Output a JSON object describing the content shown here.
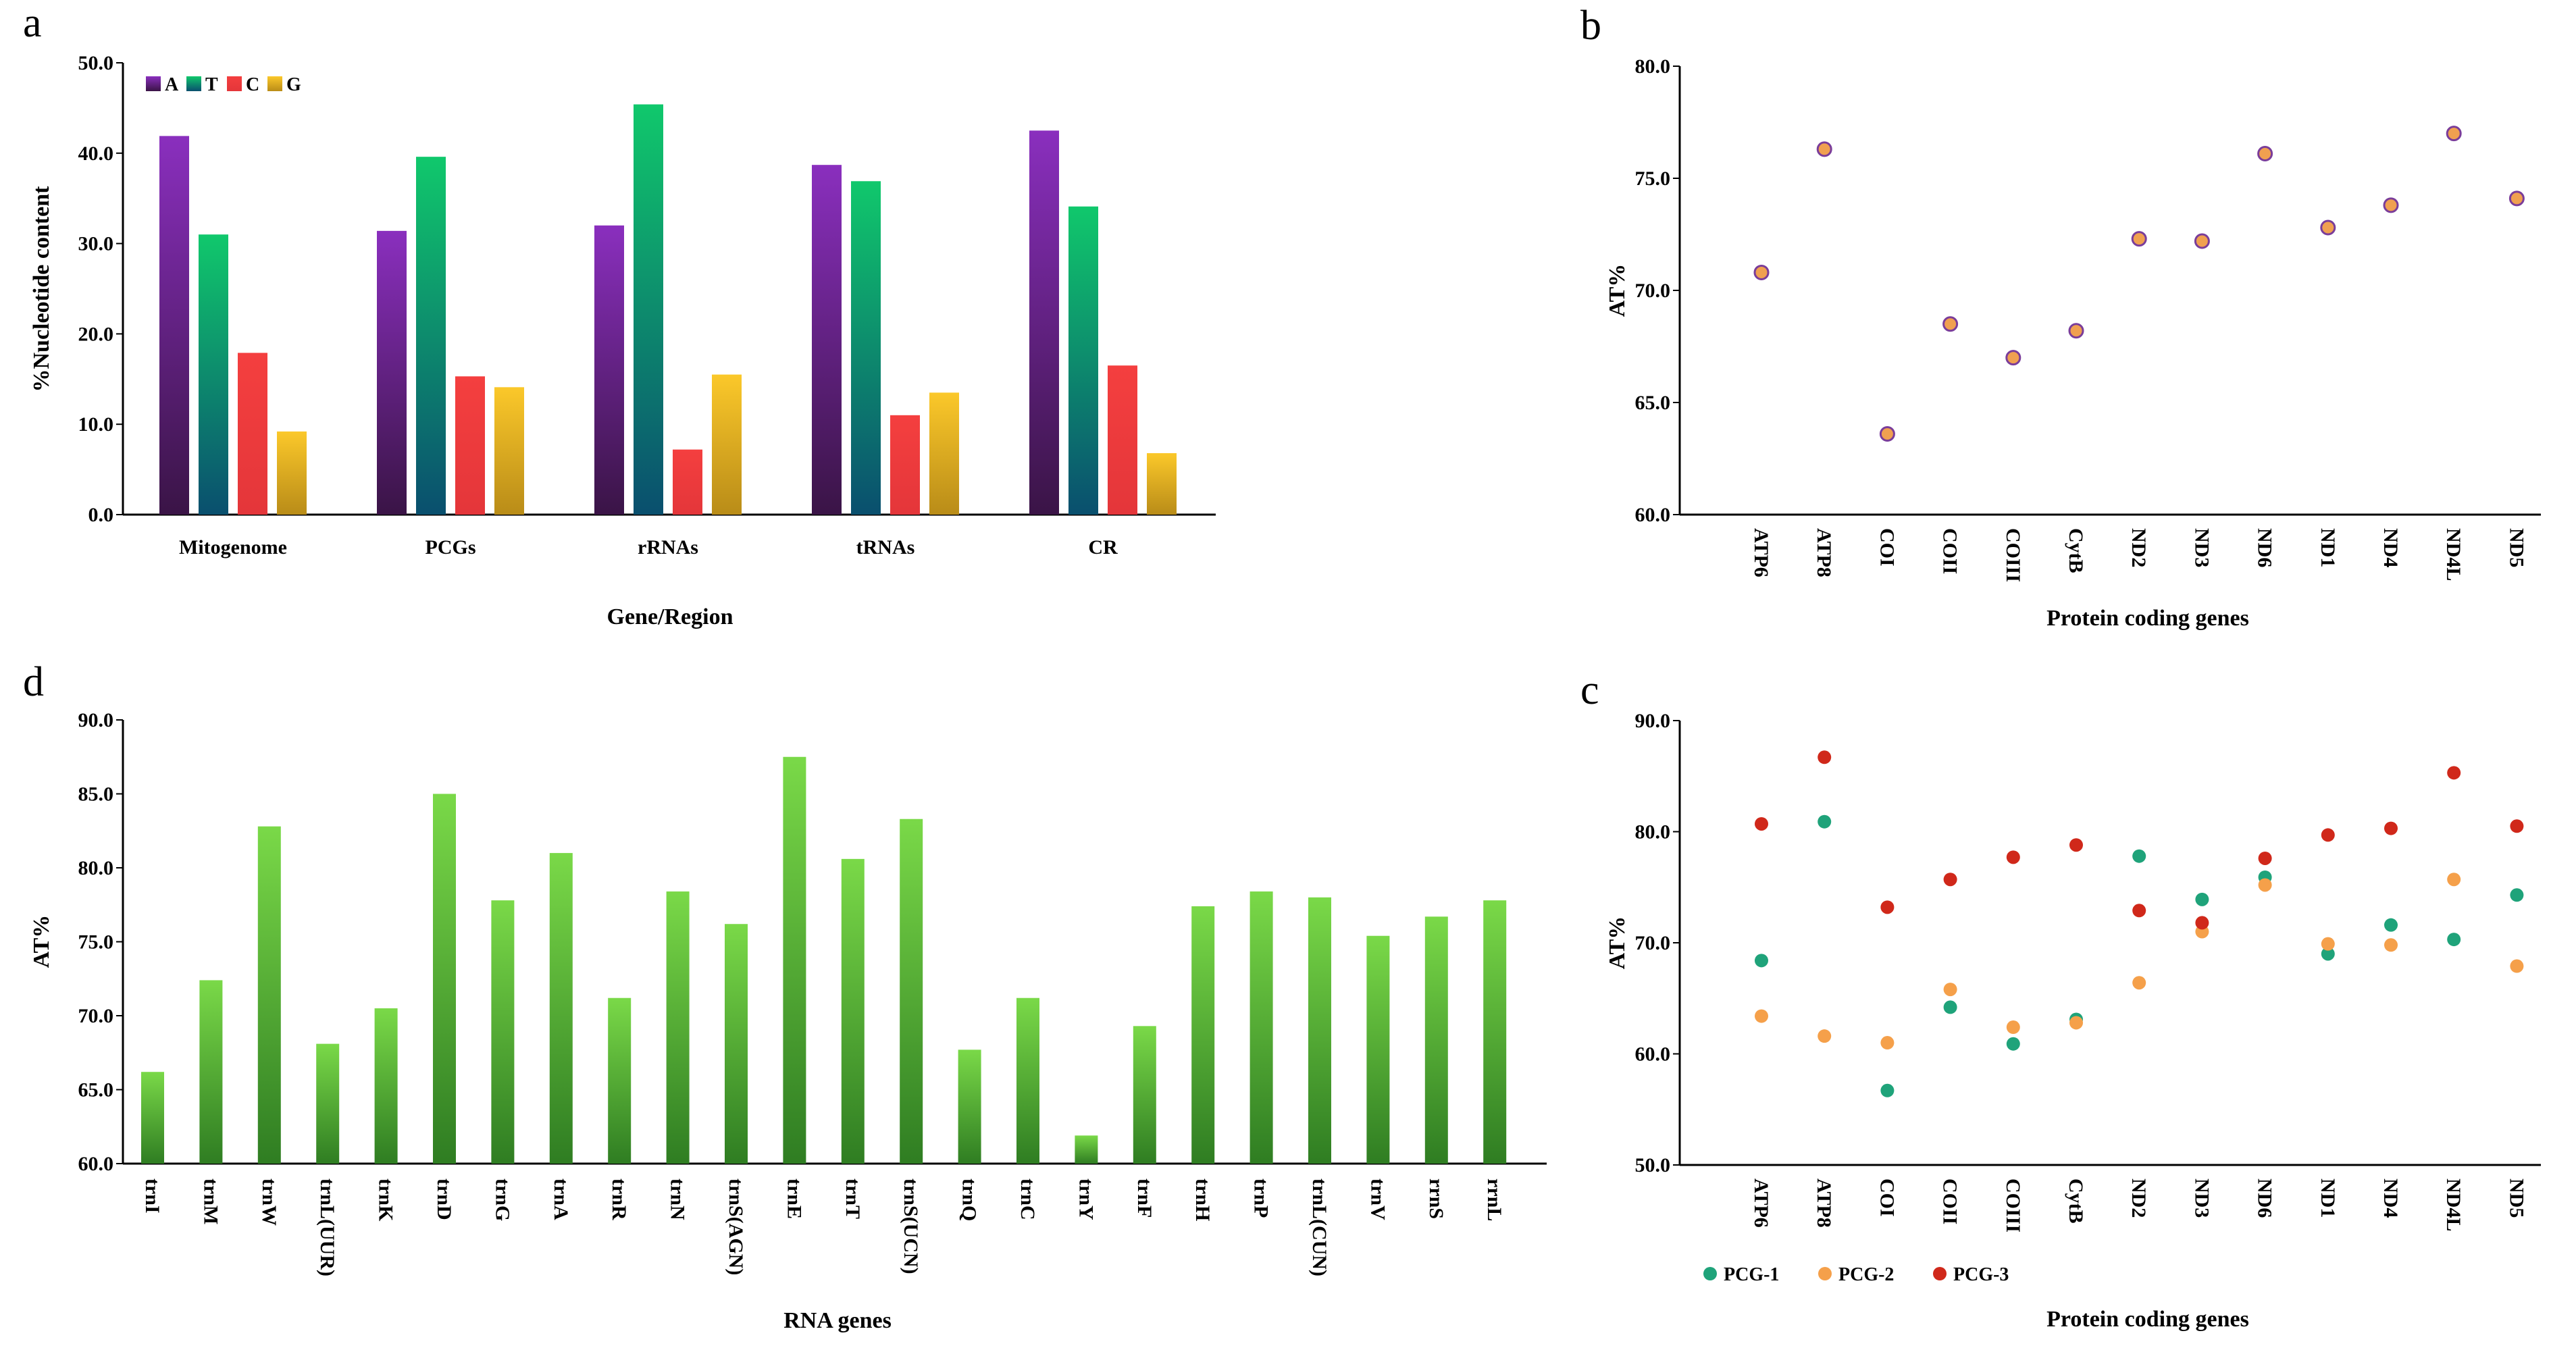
{
  "chart_data": [
    {
      "panel": "a",
      "type": "bar",
      "title": "",
      "xlabel": "Gene/Region",
      "ylabel": "%Nucleotide content",
      "ylim": [
        0,
        50
      ],
      "yticks": [
        "0.0",
        "10.0",
        "20.0",
        "30.0",
        "40.0",
        "50.0"
      ],
      "categories": [
        "Mitogenome",
        "PCGs",
        "rRNAs",
        "tRNAs",
        "CR"
      ],
      "legend_position": "top-left",
      "series": [
        {
          "name": "A",
          "color": "#7b2aa8",
          "values": [
            41.9,
            31.4,
            32.0,
            38.7,
            42.5
          ]
        },
        {
          "name": "T",
          "color": "#0fc16a",
          "values": [
            31.0,
            39.6,
            45.4,
            36.9,
            34.1
          ]
        },
        {
          "name": "C",
          "color": "#f23a3a",
          "values": [
            17.9,
            15.3,
            7.2,
            11.0,
            16.5
          ]
        },
        {
          "name": "G",
          "color": "#f8c422",
          "values": [
            9.2,
            14.1,
            15.5,
            13.5,
            6.8
          ]
        }
      ]
    },
    {
      "panel": "b",
      "type": "scatter",
      "title": "",
      "xlabel": "Protein coding genes",
      "ylabel": "AT%",
      "ylim": [
        60,
        80
      ],
      "yticks": [
        "60.0",
        "65.0",
        "70.0",
        "75.0",
        "80.0"
      ],
      "categories": [
        "ATP6",
        "ATP8",
        "COI",
        "COII",
        "COIII",
        "CytB",
        "ND2",
        "ND3",
        "ND6",
        "ND1",
        "ND4",
        "ND4L",
        "ND5"
      ],
      "series": [
        {
          "name": "AT%",
          "color": "#f0a050",
          "values": [
            70.8,
            76.3,
            63.6,
            68.5,
            67.0,
            68.2,
            72.3,
            72.2,
            76.1,
            72.8,
            73.8,
            77.0,
            74.1
          ]
        }
      ]
    },
    {
      "panel": "c",
      "type": "scatter",
      "title": "",
      "xlabel": "Protein coding genes",
      "ylabel": "AT%",
      "ylim": [
        50,
        90
      ],
      "yticks": [
        "50.0",
        "60.0",
        "70.0",
        "80.0",
        "90.0"
      ],
      "categories": [
        "ATP6",
        "ATP8",
        "COI",
        "COII",
        "COIII",
        "CytB",
        "ND2",
        "ND3",
        "ND6",
        "ND1",
        "ND4",
        "ND4L",
        "ND5"
      ],
      "legend_position": "bottom-left",
      "series": [
        {
          "name": "PCG-1",
          "color": "#1fa37a",
          "values": [
            68.4,
            80.9,
            56.7,
            64.2,
            60.9,
            63.1,
            77.8,
            73.9,
            75.9,
            69.0,
            71.6,
            70.3,
            74.3
          ]
        },
        {
          "name": "PCG-2",
          "color": "#f5a04a",
          "values": [
            63.4,
            61.6,
            61.0,
            65.8,
            62.4,
            62.8,
            66.4,
            71.0,
            75.2,
            69.9,
            69.8,
            75.7,
            67.9
          ]
        },
        {
          "name": "PCG-3",
          "color": "#d0281a",
          "values": [
            80.7,
            86.7,
            73.2,
            75.7,
            77.7,
            78.8,
            72.9,
            71.8,
            77.6,
            79.7,
            80.3,
            85.3,
            80.5
          ]
        }
      ]
    },
    {
      "panel": "d",
      "type": "bar",
      "title": "",
      "xlabel": "RNA genes",
      "ylabel": "AT%",
      "ylim": [
        60,
        90
      ],
      "yticks": [
        "60.0",
        "65.0",
        "70.0",
        "75.0",
        "80.0",
        "85.0",
        "90.0"
      ],
      "categories": [
        "trnI",
        "trnM",
        "trnW",
        "trnL(UUR)",
        "trnK",
        "trnD",
        "trnG",
        "trnA",
        "trnR",
        "trnN",
        "trnS(AGN)",
        "trnE",
        "trnT",
        "trnS(UCN)",
        "trnQ",
        "trnC",
        "trnY",
        "trnF",
        "trnH",
        "trnP",
        "trnL(CUN)",
        "trnV",
        "rrnS",
        "rrnL"
      ],
      "series": [
        {
          "name": "AT%",
          "color": "#6fcf3a",
          "values": [
            66.2,
            72.4,
            82.8,
            68.1,
            70.5,
            85.0,
            77.8,
            81.0,
            71.2,
            78.4,
            76.2,
            87.5,
            80.6,
            83.3,
            67.7,
            71.2,
            61.9,
            69.3,
            77.4,
            78.4,
            78.0,
            75.4,
            76.7,
            77.8
          ]
        }
      ]
    }
  ],
  "panels": {
    "a": "a",
    "b": "b",
    "c": "c",
    "d": "d"
  }
}
